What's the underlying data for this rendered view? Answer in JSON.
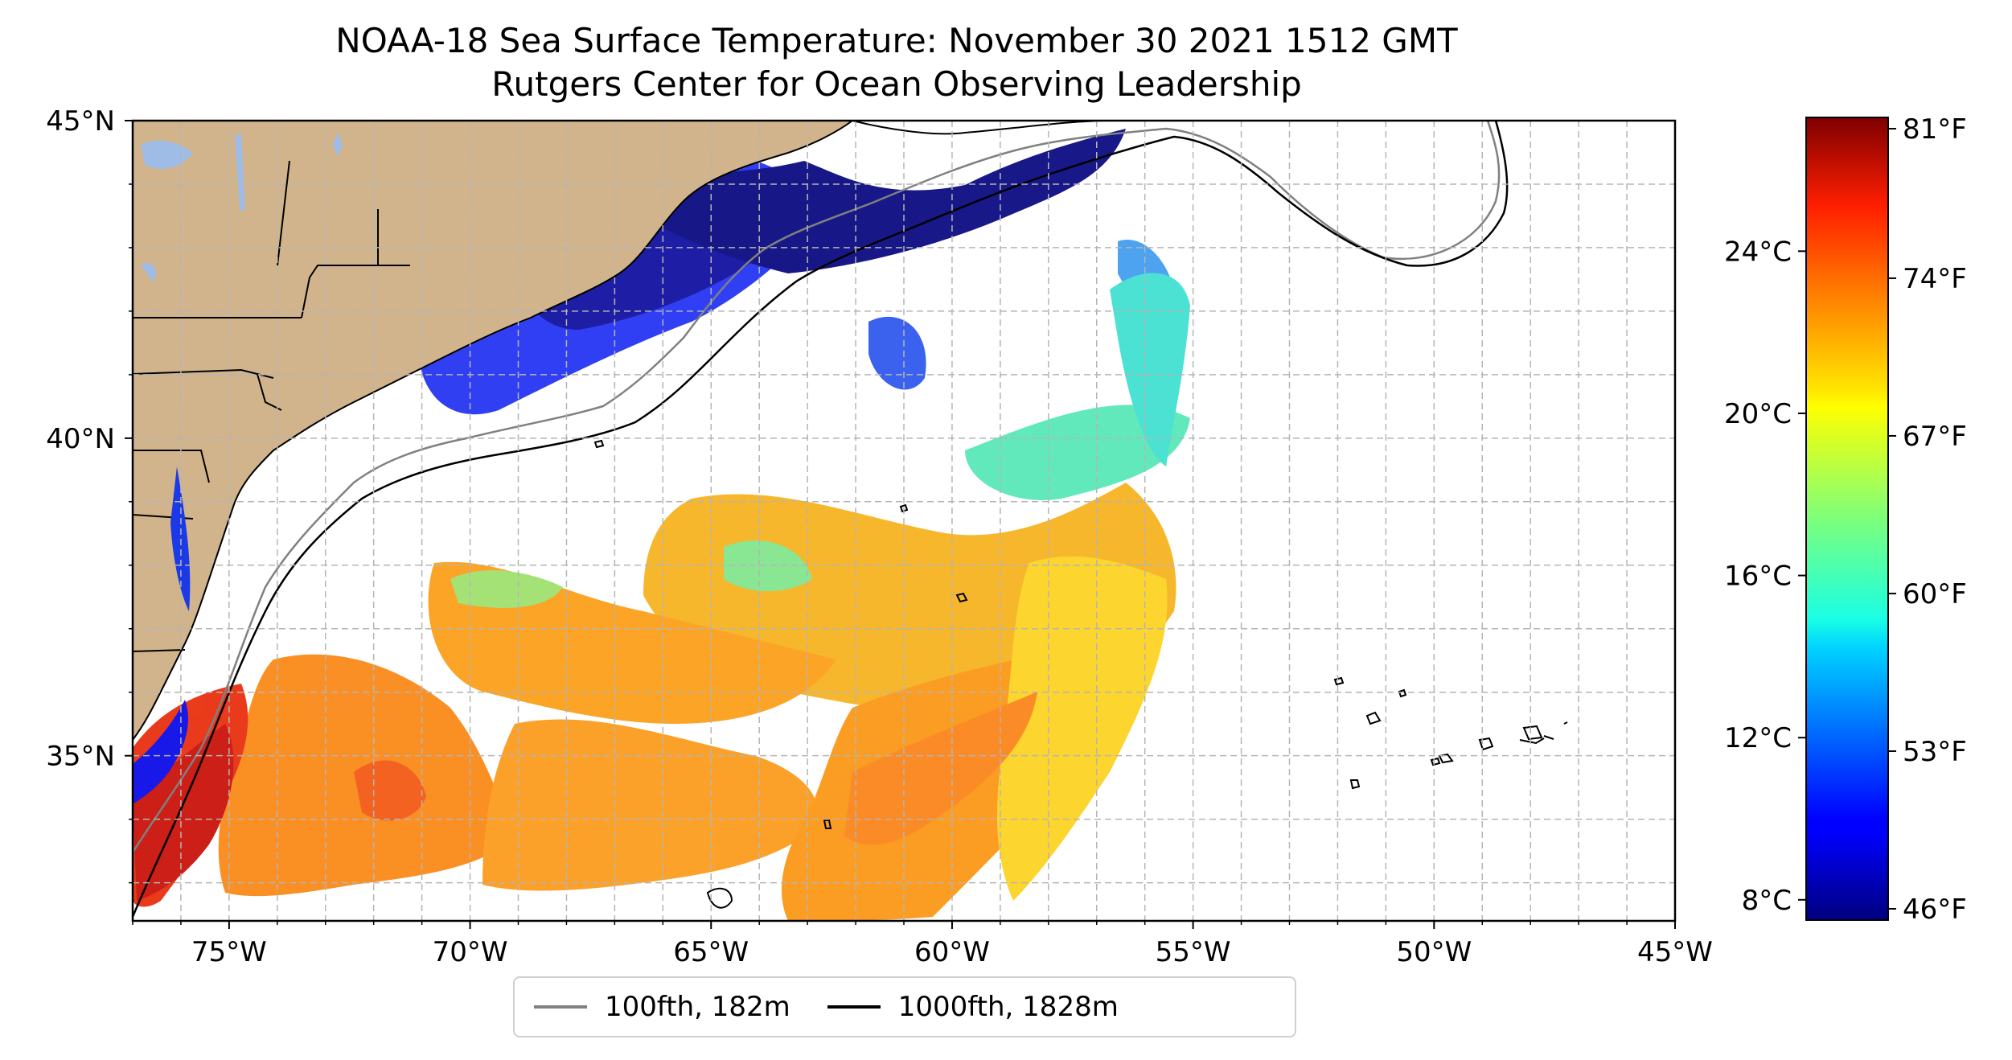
{
  "title": {
    "line1": "NOAA-18 Sea Surface Temperature: November 30 2021 1512 GMT",
    "line2": "Rutgers Center for Ocean Observing Leadership"
  },
  "map": {
    "lon_ticks": [
      "75°W",
      "70°W",
      "65°W",
      "60°W",
      "55°W",
      "50°W",
      "45°W"
    ],
    "lat_ticks": [
      "45°N",
      "40°N",
      "35°N"
    ],
    "lon_range": [
      -77,
      -45
    ],
    "lat_range": [
      32.4,
      45
    ],
    "gridlines": true,
    "colors": {
      "land": "#d2b48c",
      "lakes": "#9ebce6",
      "coastline": "#000000",
      "contour_100": "#808080",
      "contour_1000": "#000000",
      "grid": "#b5b5b5"
    }
  },
  "colorbar": {
    "celsius_ticks": [
      "24°C",
      "20°C",
      "16°C",
      "12°C",
      "8°C"
    ],
    "fahrenheit_ticks": [
      "81°F",
      "74°F",
      "67°F",
      "60°F",
      "53°F",
      "46°F"
    ],
    "colormap": "jet"
  },
  "legend": {
    "items": [
      {
        "label": "100fth, 182m",
        "color": "#808080"
      },
      {
        "label": "1000fth, 1828m",
        "color": "#000000"
      }
    ]
  }
}
